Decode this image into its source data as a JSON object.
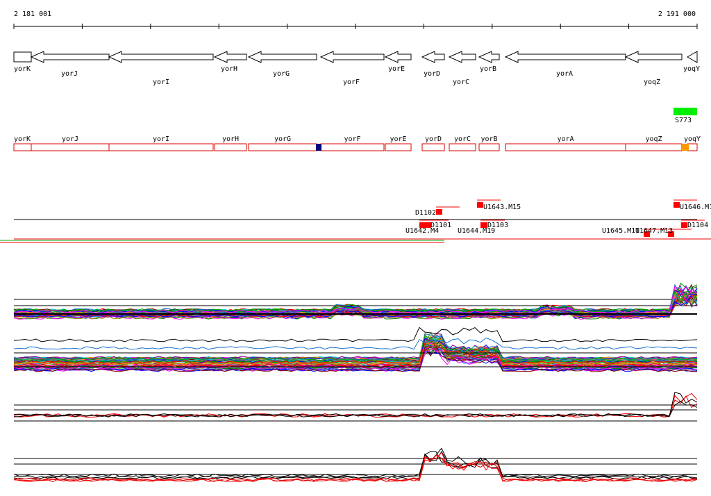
{
  "ruler": {
    "start": "2 181 001",
    "end": "2 191 000"
  },
  "genes": [
    "yorK",
    "yorJ",
    "yorI",
    "yorH",
    "yorG",
    "yorF",
    "yorE",
    "yorD",
    "yorC",
    "yorB",
    "yorA",
    "yoqZ",
    "yoqY"
  ],
  "annotation_genes": [
    "yorK",
    "yorJ",
    "yorI",
    "yorH",
    "yorG",
    "yorF",
    "yorE",
    "yorD",
    "yorC",
    "yorB",
    "yorA",
    "yoqZ",
    "yoqY"
  ],
  "segment": {
    "label": "S773"
  },
  "features": [
    "D1102",
    "U1643.M15",
    "U1646.M1",
    "U1642.M4",
    "D1101",
    "U1644.M19",
    "D1103",
    "U1645.M11",
    "U1647.M13",
    "D1104"
  ]
}
